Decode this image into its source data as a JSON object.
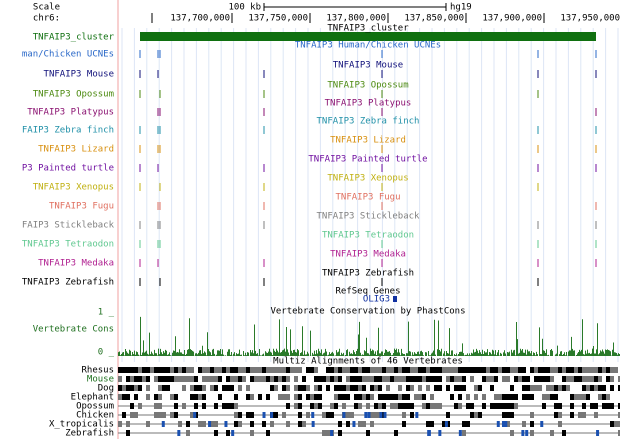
{
  "header": {
    "scale": "Scale",
    "chrom": "chr6:",
    "scale_bar": "100 kb",
    "assembly": "hg19",
    "coords": [
      "137,700,000",
      "137,750,000",
      "137,800,000",
      "137,850,000",
      "137,900,000",
      "137,950,000"
    ]
  },
  "tracks": [
    {
      "label": "TNFAIP3_cluster",
      "title": "TNFAIP3_cluster",
      "color": "#107010"
    },
    {
      "label": "man/Chicken UCNEs",
      "title": "TNFAIP3 Human/Chicken UCNEs",
      "color": "#2a68c8"
    },
    {
      "label": "TNFAIP3 Mouse",
      "title": "TNFAIP3 Mouse",
      "color": "#10107a"
    },
    {
      "label": "TNFAIP3 Opossum",
      "title": "TNFAIP3 Opossum",
      "color": "#4c8a10"
    },
    {
      "label": "TNFAIP3 Platypus",
      "title": "TNFAIP3 Platypus",
      "color": "#8a1070"
    },
    {
      "label": "FAIP3 Zebra finch",
      "title": "TNFAIP3 Zebra finch",
      "color": "#2090a8"
    },
    {
      "label": "TNFAIP3 Lizard",
      "title": "TNFAIP3 Lizard",
      "color": "#d89010"
    },
    {
      "label": "P3 Painted turtle",
      "title": "TNFAIP3 Painted turtle",
      "color": "#7010a0"
    },
    {
      "label": "TNFAIP3 Xenopus",
      "title": "TNFAIP3 Xenopus",
      "color": "#c0b010"
    },
    {
      "label": "TNFAIP3 Fugu",
      "title": "TNFAIP3 Fugu",
      "color": "#e07060"
    },
    {
      "label": "FAIP3 Stickleback",
      "title": "TNFAIP3 Stickleback",
      "color": "#808080"
    },
    {
      "label": "TNFAIP3 Tetraodon",
      "title": "TNFAIP3 Tetraodon",
      "color": "#60c890"
    },
    {
      "label": "TNFAIP3 Medaka",
      "title": "TNFAIP3 Medaka",
      "color": "#b02090"
    },
    {
      "label": "TNFAIP3 Zebrafish",
      "title": "TNFAIP3 Zebrafish",
      "color": "#000000"
    }
  ],
  "refseq": {
    "title": "RefSeq Genes",
    "gene": "OLIG3"
  },
  "conservation": {
    "title": "Vertebrate Conservation by PhastCons",
    "label": "Vertebrate Cons",
    "top": "1 _",
    "bottom": "0 _"
  },
  "multiz": {
    "title": "Multiz Alignments of 46 Vertebrates",
    "species": [
      "Rhesus",
      "Mouse",
      "Dog",
      "Elephant",
      "Opossum",
      "Chicken",
      "X_tropicalis",
      "Zebrafish"
    ]
  }
}
